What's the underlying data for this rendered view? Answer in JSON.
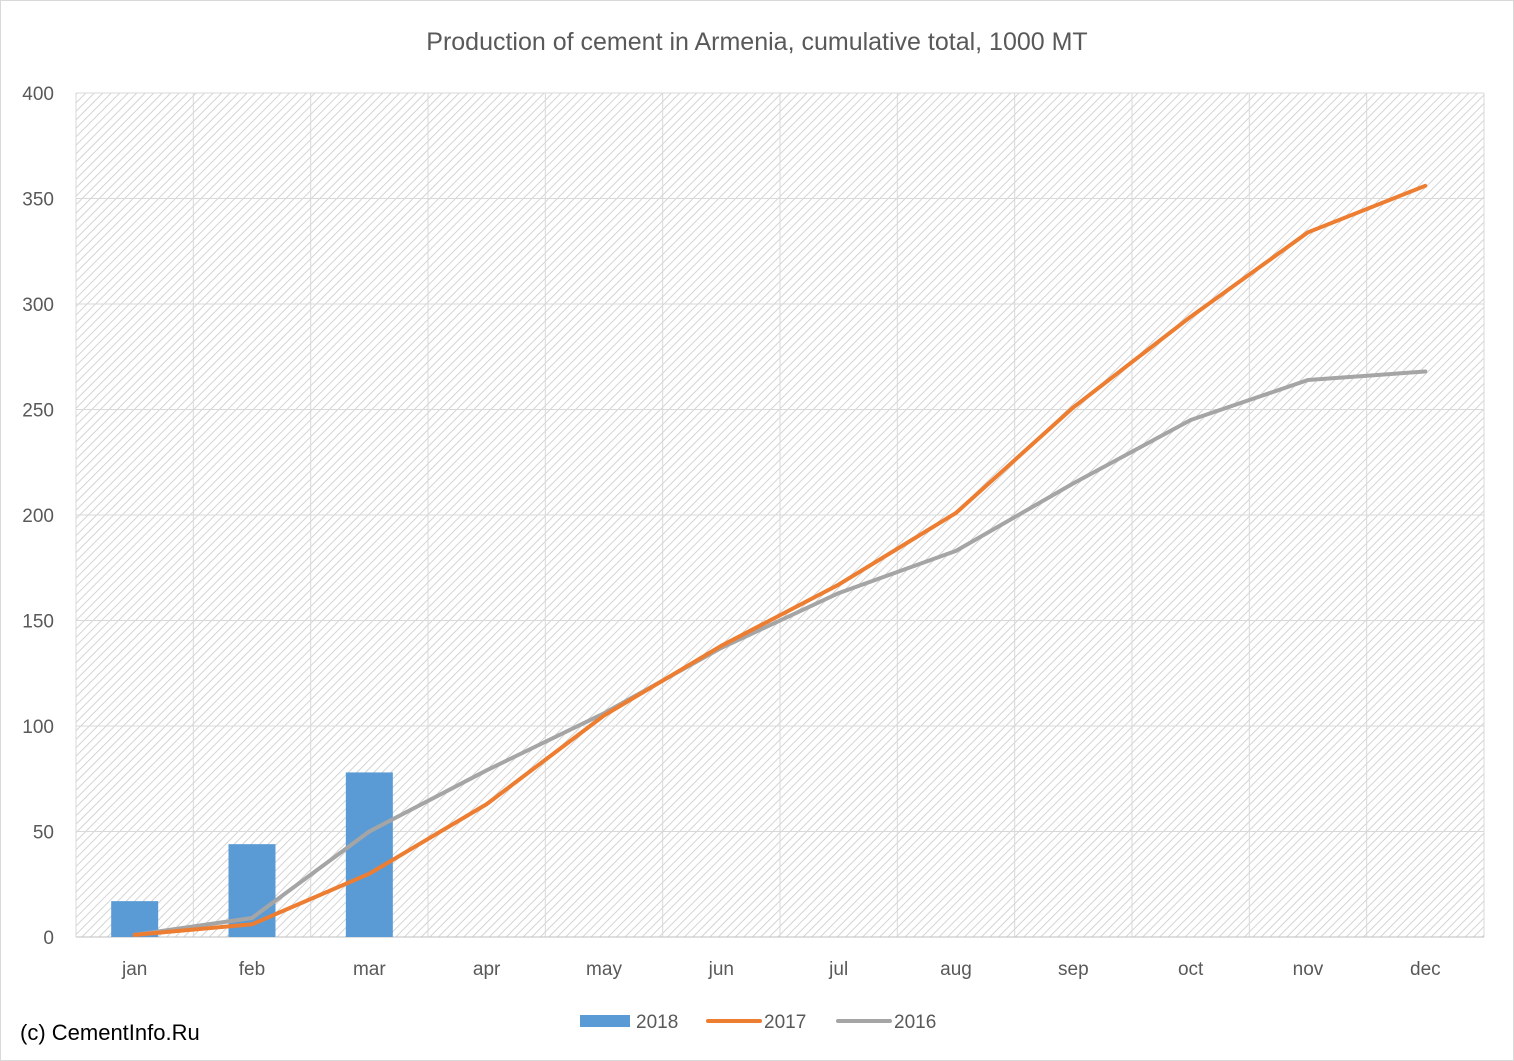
{
  "chart_data": {
    "type": "bar+line",
    "title": "Production of cement in Armenia, cumulative total, 1000 MT",
    "categories": [
      "jan",
      "feb",
      "mar",
      "apr",
      "may",
      "jun",
      "jul",
      "aug",
      "sep",
      "oct",
      "nov",
      "dec"
    ],
    "ylim": [
      0,
      400
    ],
    "yticks": [
      0,
      50,
      100,
      150,
      200,
      250,
      300,
      350,
      400
    ],
    "grid": true,
    "legend_position": "bottom",
    "series": [
      {
        "name": "2018",
        "kind": "bar",
        "color": "#5b9bd5",
        "values": [
          17,
          44,
          78,
          null,
          null,
          null,
          null,
          null,
          null,
          null,
          null,
          null
        ]
      },
      {
        "name": "2017",
        "kind": "line",
        "color": "#ed7d31",
        "values": [
          1,
          6,
          30,
          63,
          105,
          138,
          167,
          201,
          251,
          294,
          334,
          356
        ]
      },
      {
        "name": "2016",
        "kind": "line",
        "color": "#a5a5a5",
        "values": [
          1,
          9,
          50,
          79,
          106,
          137,
          163,
          183,
          215,
          245,
          264,
          268
        ]
      }
    ]
  },
  "credit": "(c) CementInfo.Ru"
}
